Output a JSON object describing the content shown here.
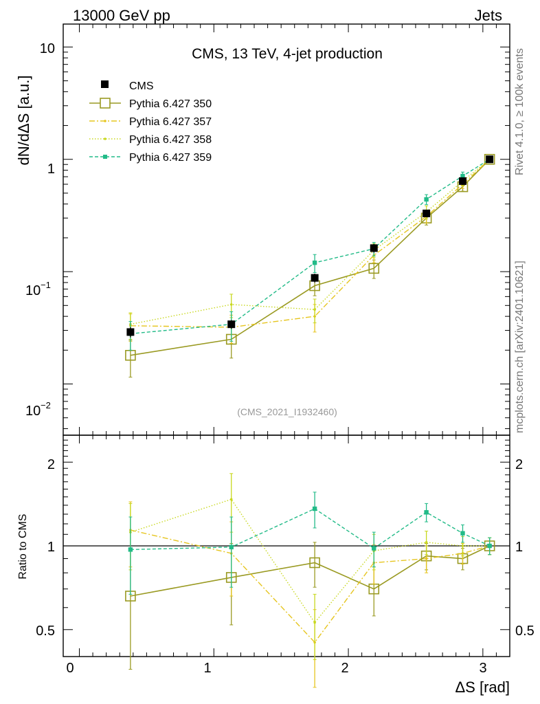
{
  "header": {
    "left": "13000 GeV pp",
    "right": "Jets"
  },
  "side_labels": {
    "rivet": "Rivet 4.1.0, ≥ 100k events",
    "mcplots": "mcplots.cern.ch [arXiv:2401.10621]"
  },
  "chart_data": {
    "type": "line",
    "title": "CMS, 13 TeV, 4-jet production",
    "analysis_id": "(CMS_2021_I1932460)",
    "xlabel": "ΔS [rad]",
    "ylabel": "dN/dΔS [a.u.]",
    "ratio_ylabel": "Ratio to CMS",
    "xlim": [
      -0.12,
      3.2
    ],
    "ylim_log": [
      0.0035,
      16
    ],
    "ratio_ylim": [
      0.4,
      2.5
    ],
    "main_ticks": {
      "x": [
        0,
        1,
        2,
        3
      ],
      "y": [
        0.01,
        0.1,
        1,
        10
      ],
      "y_labels": [
        "10",
        "−2",
        "10",
        "−1",
        "1",
        "10"
      ]
    },
    "ratio_ticks": {
      "x_labels": [
        "0",
        "1",
        "2",
        "3"
      ],
      "y": [
        0.5,
        1,
        2
      ],
      "y_labels": [
        "0.5",
        "1",
        "2"
      ]
    },
    "x": [
      0.38,
      1.13,
      1.75,
      2.19,
      2.58,
      2.85,
      3.05
    ],
    "series": [
      {
        "name": "CMS",
        "color": "#000000",
        "style": "data",
        "values": [
          0.029,
          0.034,
          0.088,
          0.162,
          0.33,
          0.64,
          1.0
        ],
        "err": [
          0.003,
          0.003,
          0.008,
          0.014,
          0.025,
          0.05,
          0.06
        ]
      },
      {
        "name": "Pythia 6.427 350",
        "color": "#9a9a22",
        "style": "solid",
        "values": [
          0.018,
          0.025,
          0.075,
          0.107,
          0.3,
          0.57,
          1.0
        ],
        "err": [
          0.0065,
          0.008,
          0.014,
          0.02,
          0.04,
          0.05,
          0.06
        ]
      },
      {
        "name": "Pythia 6.427 357",
        "color": "#e6c51e",
        "style": "dashdot",
        "values": [
          0.033,
          0.032,
          0.04,
          0.14,
          0.31,
          0.6,
          1.0
        ],
        "err": [
          0.009,
          0.009,
          0.011,
          0.02,
          0.04,
          0.05,
          0.06
        ]
      },
      {
        "name": "Pythia 6.427 358",
        "color": "#c8d81e",
        "style": "dotted",
        "values": [
          0.034,
          0.051,
          0.046,
          0.155,
          0.34,
          0.64,
          1.0
        ],
        "err": [
          0.009,
          0.012,
          0.011,
          0.022,
          0.045,
          0.06,
          0.06
        ]
      },
      {
        "name": "Pythia 6.427 359",
        "color": "#22bb88",
        "style": "dashed",
        "values": [
          0.028,
          0.034,
          0.12,
          0.16,
          0.44,
          0.71,
          1.0
        ],
        "err": [
          0.008,
          0.01,
          0.022,
          0.022,
          0.045,
          0.06,
          0.06
        ]
      }
    ],
    "ratios": [
      {
        "name": "Pythia 6.427 350",
        "values": [
          0.66,
          0.77,
          0.87,
          0.7,
          0.92,
          0.9,
          1.0
        ],
        "err": [
          0.3,
          0.25,
          0.16,
          0.14,
          0.1,
          0.08,
          0.07
        ]
      },
      {
        "name": "Pythia 6.427 357",
        "values": [
          1.14,
          0.94,
          0.45,
          0.87,
          0.9,
          0.94,
          1.0
        ],
        "err": [
          0.3,
          0.28,
          0.14,
          0.14,
          0.1,
          0.08,
          0.07
        ]
      },
      {
        "name": "Pythia 6.427 358",
        "values": [
          1.12,
          1.47,
          0.53,
          0.96,
          1.03,
          1.0,
          1.0
        ],
        "err": [
          0.3,
          0.35,
          0.14,
          0.14,
          0.1,
          0.08,
          0.07
        ]
      },
      {
        "name": "Pythia 6.427 359",
        "values": [
          0.97,
          0.99,
          1.36,
          0.98,
          1.32,
          1.11,
          1.0
        ],
        "err": [
          0.3,
          0.28,
          0.2,
          0.14,
          0.1,
          0.08,
          0.07
        ]
      }
    ]
  }
}
